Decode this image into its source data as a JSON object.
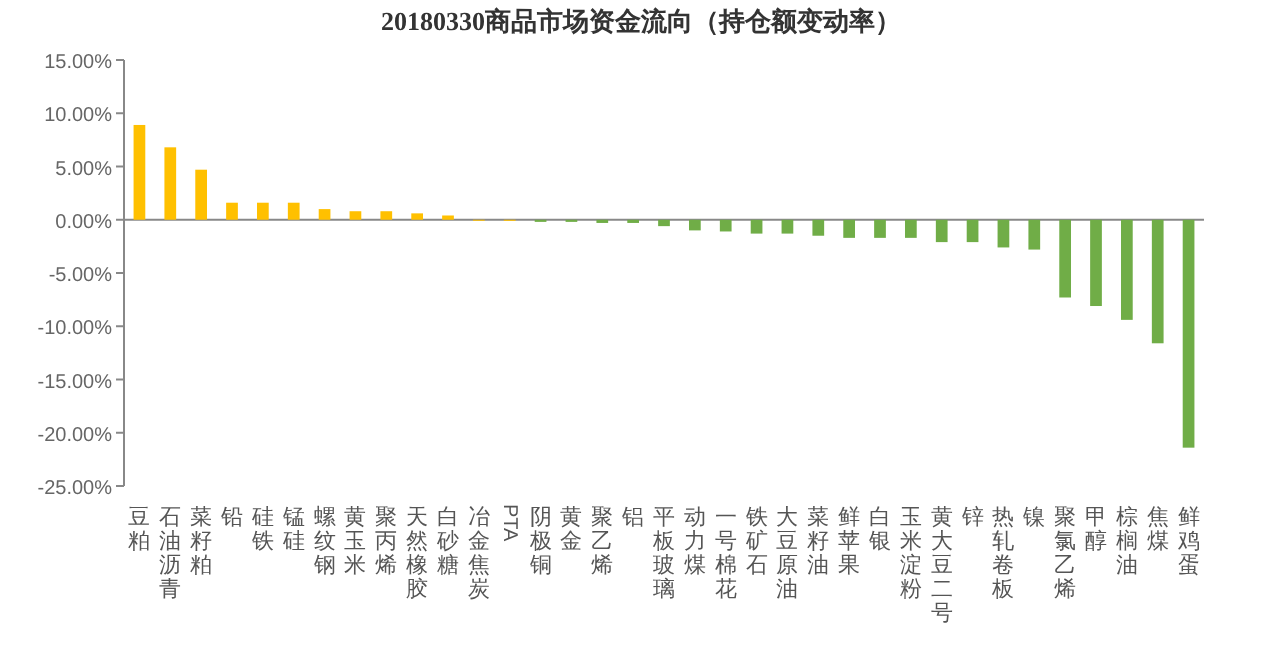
{
  "chart_data": {
    "type": "bar",
    "title": "20180330商品市场资金流向（持仓额变动率）",
    "categories": [
      "豆粕",
      "石油沥青",
      "菜籽粕",
      "铅",
      "硅铁",
      "锰硅",
      "螺纹钢",
      "黄玉米",
      "聚丙烯",
      "天然橡胶",
      "白砂糖",
      "冶金焦炭",
      "PTA",
      "阴极铜",
      "黄金",
      "聚乙烯",
      "铝",
      "平板玻璃",
      "动力煤",
      "一号棉花",
      "铁矿石",
      "大豆原油",
      "菜籽油",
      "鲜苹果",
      "白银",
      "玉米淀粉",
      "黄大豆二号",
      "锌",
      "热轧卷板",
      "镍",
      "聚氯乙烯",
      "甲醇",
      "棕榈油",
      "焦煤",
      "鲜鸡蛋"
    ],
    "values": [
      8.9,
      6.8,
      4.7,
      1.6,
      1.6,
      1.6,
      1.0,
      0.8,
      0.8,
      0.6,
      0.4,
      0.0,
      -0.1,
      -0.2,
      -0.2,
      -0.3,
      -0.3,
      -0.6,
      -1.0,
      -1.1,
      -1.3,
      -1.3,
      -1.5,
      -1.7,
      -1.7,
      -1.7,
      -2.1,
      -2.1,
      -2.6,
      -2.8,
      -7.3,
      -8.1,
      -9.4,
      -11.6,
      -21.4
    ],
    "colors": [
      "#ffc000",
      "#ffc000",
      "#ffc000",
      "#ffc000",
      "#ffc000",
      "#ffc000",
      "#ffc000",
      "#ffc000",
      "#ffc000",
      "#ffc000",
      "#ffc000",
      "#ffc000",
      "#ffc000",
      "#70ad47",
      "#70ad47",
      "#70ad47",
      "#70ad47",
      "#70ad47",
      "#70ad47",
      "#70ad47",
      "#70ad47",
      "#70ad47",
      "#70ad47",
      "#70ad47",
      "#70ad47",
      "#70ad47",
      "#70ad47",
      "#70ad47",
      "#70ad47",
      "#70ad47",
      "#70ad47",
      "#70ad47",
      "#70ad47",
      "#70ad47",
      "#70ad47"
    ],
    "ylim": [
      -25,
      15
    ],
    "yticks": [
      {
        "value": 15,
        "label": "15.00%"
      },
      {
        "value": 10,
        "label": "10.00%"
      },
      {
        "value": 5,
        "label": "5.00%"
      },
      {
        "value": 0,
        "label": "0.00%"
      },
      {
        "value": -5,
        "label": "-5.00%"
      },
      {
        "value": -10,
        "label": "-10.00%"
      },
      {
        "value": -15,
        "label": "-15.00%"
      },
      {
        "value": -20,
        "label": "-20.00%"
      },
      {
        "value": -25,
        "label": "-25.00%"
      }
    ],
    "orientation": "vertical"
  }
}
